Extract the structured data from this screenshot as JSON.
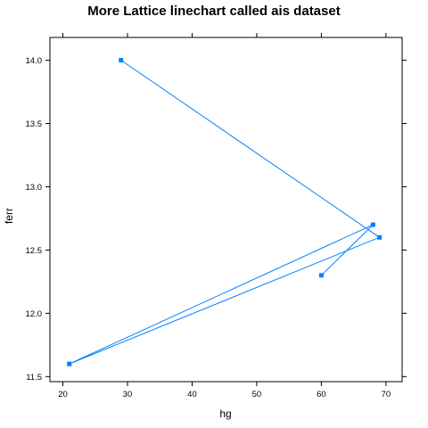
{
  "chart_data": {
    "type": "line",
    "title": "More Lattice linechart called ais dataset",
    "xlabel": "hg",
    "ylabel": "ferr",
    "xlim": [
      18,
      72.5
    ],
    "ylim": [
      11.46,
      14.18
    ],
    "x_ticks": [
      20,
      30,
      40,
      50,
      60,
      70
    ],
    "y_ticks": [
      11.5,
      12.0,
      12.5,
      13.0,
      13.5,
      14.0
    ],
    "x_tick_labels": [
      "20",
      "30",
      "40",
      "50",
      "60",
      "70"
    ],
    "y_tick_labels": [
      "11.5",
      "12.0",
      "12.5",
      "13.0",
      "13.5",
      "14.0"
    ],
    "grid": false,
    "series": [
      {
        "color": "#0080ff",
        "marker": "square",
        "points": [
          {
            "x": 29,
            "y": 14.0
          },
          {
            "x": 69,
            "y": 12.6
          },
          {
            "x": 21,
            "y": 11.6
          },
          {
            "x": 68,
            "y": 12.7
          },
          {
            "x": 60,
            "y": 12.3
          }
        ]
      }
    ]
  }
}
